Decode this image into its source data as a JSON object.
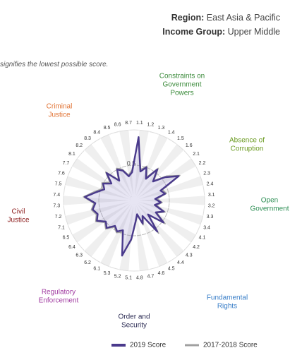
{
  "header": {
    "region_label": "Region:",
    "region": "East Asia & Pacific",
    "income_label": "Income Group:",
    "income": "Upper Middle"
  },
  "note": "signifies the lowest possible score.",
  "chart_data": {
    "type": "radar",
    "categories": [
      "1.1",
      "1.2",
      "1.3",
      "1.4",
      "1.5",
      "1.6",
      "2.1",
      "2.2",
      "2.3",
      "2.4",
      "3.1",
      "3.2",
      "3.3",
      "3.4",
      "4.1",
      "4.2",
      "4.3",
      "4.4",
      "4.5",
      "4.6",
      "4.7",
      "4.8",
      "5.1",
      "5.2",
      "5.3",
      "6.1",
      "6.2",
      "6.3",
      "6.4",
      "6.5",
      "7.1",
      "7.2",
      "7.3",
      "7.4",
      "7.5",
      "7.6",
      "7.7",
      "8.1",
      "8.2",
      "8.3",
      "8.4",
      "8.5",
      "8.6",
      "8.7"
    ],
    "groups": [
      {
        "lines": [
          "Constraints on",
          "Government",
          "Powers"
        ],
        "color": "#3a8a3a"
      },
      {
        "lines": [
          "Absence of",
          "Corruption"
        ],
        "color": "#6a9a20"
      },
      {
        "lines": [
          "Open",
          "Government"
        ],
        "color": "#2e8f55"
      },
      {
        "lines": [
          "Fundamental",
          "Rights"
        ],
        "color": "#3a7fc8"
      },
      {
        "lines": [
          "Order and",
          "Security"
        ],
        "color": "#2d2d55"
      },
      {
        "lines": [
          "Regulatory",
          "Enforcement"
        ],
        "color": "#a03aa0"
      },
      {
        "lines": [
          "Civil",
          "Justice"
        ],
        "color": "#8b1a1a"
      },
      {
        "lines": [
          "Criminal",
          "Justice"
        ],
        "color": "#e07030"
      }
    ],
    "series": [
      {
        "name": "2019 Score",
        "color": "#4a3a8c",
        "values": [
          0.9,
          0.42,
          0.5,
          0.35,
          0.55,
          0.38,
          0.55,
          0.72,
          0.4,
          0.45,
          0.3,
          0.38,
          0.3,
          0.45,
          0.35,
          0.52,
          0.28,
          0.55,
          0.25,
          0.35,
          0.2,
          0.3,
          0.55,
          0.8,
          0.45,
          0.5,
          0.45,
          0.55,
          0.5,
          0.6,
          0.55,
          0.6,
          0.55,
          0.7,
          0.55,
          0.45,
          0.5,
          0.4,
          0.55,
          0.35,
          0.5,
          0.45,
          0.35,
          0.4
        ]
      },
      {
        "name": "2017-2018 Score",
        "color": "#a0a0a0",
        "values": [
          0.85,
          0.45,
          0.52,
          0.38,
          0.57,
          0.4,
          0.58,
          0.74,
          0.43,
          0.47,
          0.33,
          0.4,
          0.33,
          0.47,
          0.37,
          0.55,
          0.3,
          0.58,
          0.27,
          0.37,
          0.22,
          0.32,
          0.57,
          0.78,
          0.48,
          0.52,
          0.47,
          0.57,
          0.52,
          0.62,
          0.57,
          0.62,
          0.57,
          0.72,
          0.58,
          0.48,
          0.52,
          0.43,
          0.57,
          0.37,
          0.52,
          0.47,
          0.37,
          0.43
        ]
      }
    ],
    "rlim": [
      0,
      1
    ],
    "rticks": [
      0,
      0.5
    ]
  }
}
